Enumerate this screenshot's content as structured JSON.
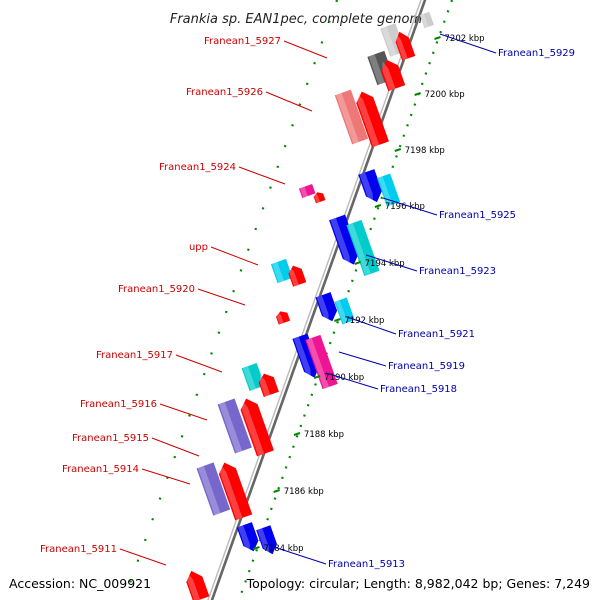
{
  "title": "Frankia sp. EAN1pec, complete genome",
  "accession": "Accession: NC_009921",
  "topology": "Topology: circular; Length: 8,982,042 bp; Genes: 7,249",
  "colors": {
    "red": "#ff0000",
    "blue": "#0000ee",
    "cyan": "#00ccee",
    "teal": "#00cccc",
    "magenta": "#ee1493",
    "purple": "#7766cc",
    "salmon": "#ee7777",
    "gray": "#888888",
    "dark_gray": "#555555",
    "light_gray": "#cccccc",
    "axis": "#888888",
    "ruler": "#008800",
    "label_left": "#cc0000",
    "label_right": "#0000aa"
  },
  "diagram": {
    "kbp_ticks": [
      {
        "text": "7202 kbp"
      },
      {
        "text": "7200 kbp"
      },
      {
        "text": "7198 kbp"
      },
      {
        "text": "7196 kbp"
      },
      {
        "text": "7194 kbp"
      },
      {
        "text": "7192 kbp"
      },
      {
        "text": "7190 kbp"
      },
      {
        "text": "7188 kbp"
      },
      {
        "text": "7186 kbp"
      },
      {
        "text": "7184 kbp"
      }
    ],
    "left_labels": [
      {
        "text": "Franean1_5927"
      },
      {
        "text": "Franean1_5926"
      },
      {
        "text": "Franean1_5924"
      },
      {
        "text": "upp"
      },
      {
        "text": "Franean1_5920"
      },
      {
        "text": "Franean1_5917"
      },
      {
        "text": "Franean1_5916"
      },
      {
        "text": "Franean1_5915"
      },
      {
        "text": "Franean1_5914"
      },
      {
        "text": "Franean1_5911"
      }
    ],
    "right_labels": [
      {
        "text": "Franean1_5929"
      },
      {
        "text": "Franean1_5925"
      },
      {
        "text": "Franean1_5923"
      },
      {
        "text": "Franean1_5921"
      },
      {
        "text": "Franean1_5919"
      },
      {
        "text": "Franean1_5918"
      },
      {
        "text": "Franean1_5913"
      }
    ]
  }
}
